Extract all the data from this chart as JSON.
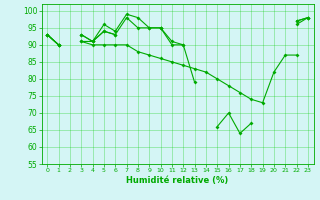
{
  "xlabel": "Humidité relative (%)",
  "background_color": "#d4f5f5",
  "grid_color": "#00cc00",
  "line_color": "#00aa00",
  "xlim": [
    -0.5,
    23.5
  ],
  "ylim": [
    55,
    102
  ],
  "yticks": [
    55,
    60,
    65,
    70,
    75,
    80,
    85,
    90,
    95,
    100
  ],
  "xticks": [
    0,
    1,
    2,
    3,
    4,
    5,
    6,
    7,
    8,
    9,
    10,
    11,
    12,
    13,
    14,
    15,
    16,
    17,
    18,
    19,
    20,
    21,
    22,
    23
  ],
  "series": [
    [
      93,
      90,
      null,
      91,
      91,
      96,
      94,
      99,
      98,
      95,
      95,
      91,
      90,
      79,
      null,
      null,
      null,
      null,
      null,
      null,
      null,
      null,
      97,
      98
    ],
    [
      93,
      90,
      null,
      93,
      91,
      94,
      93,
      98,
      95,
      95,
      95,
      null,
      null,
      null,
      null,
      null,
      null,
      null,
      null,
      null,
      null,
      null,
      96,
      98
    ],
    [
      93,
      90,
      null,
      93,
      91,
      94,
      93,
      null,
      null,
      null,
      95,
      90,
      90,
      null,
      null,
      66,
      70,
      64,
      67,
      null,
      null,
      null,
      97,
      98
    ],
    [
      93,
      90,
      null,
      91,
      90,
      90,
      90,
      90,
      88,
      87,
      86,
      85,
      84,
      83,
      82,
      80,
      78,
      76,
      74,
      73,
      82,
      87,
      87,
      null
    ]
  ]
}
